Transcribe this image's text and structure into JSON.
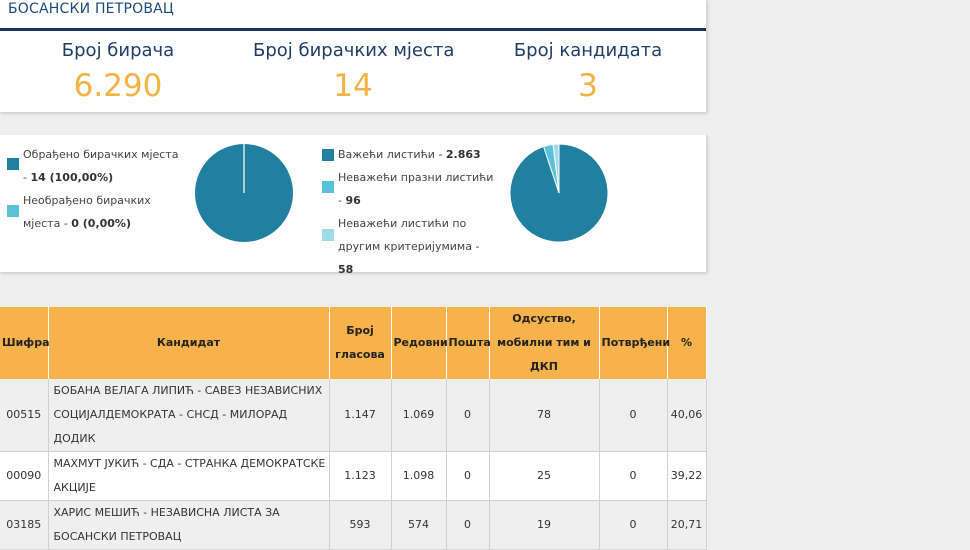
{
  "header": {
    "municipality": "БОСАНСКИ ПЕТРОВАЦ"
  },
  "stats": [
    {
      "label": "Број бирача",
      "value": "6.290"
    },
    {
      "label": "Број бирачких мјеста",
      "value": "14"
    },
    {
      "label": "Број кандидата",
      "value": "3"
    }
  ],
  "pies": {
    "stations": {
      "items": [
        {
          "text": "Обрађено бирачких мјеста - ",
          "value": "14 (100,00%)",
          "share": 1.0,
          "color": "#21809f"
        },
        {
          "text": "Необрађено бирачких мјеста - ",
          "value": "0 (0,00%)",
          "share": 0.0,
          "color": "#5bc1db"
        }
      ]
    },
    "ballots": {
      "items": [
        {
          "text": "Важећи листићи - ",
          "value": "2.863",
          "share": 2863,
          "color": "#21809f"
        },
        {
          "text": "Неважећи празни листићи - ",
          "value": "96",
          "share": 96,
          "color": "#5bc1db"
        },
        {
          "text": "Неважећи листићи по другим критеријумима - ",
          "value": "58",
          "share": 58,
          "color": "#9fdbe9"
        }
      ]
    }
  },
  "table": {
    "headers": [
      "Шифра",
      "Кандидат",
      "Број гласова",
      "Редовни",
      "Пошта",
      "Одсуство, мобилни тим и ДКП",
      "Потврђени",
      "%"
    ],
    "rows": [
      [
        "00515",
        "БОБАНА ВЕЛАГА ЛИПИЋ - САВЕЗ НЕЗАВИСНИХ СОЦИЈАЛДЕМОКРАТА - СНСД - МИЛОРАД ДОДИК",
        "1.147",
        "1.069",
        "0",
        "78",
        "0",
        "40,06"
      ],
      [
        "00090",
        "МАХМУТ ЈУКИЋ - СДА - СТРАНКА ДЕМОКРАТСКЕ АКЦИЈЕ",
        "1.123",
        "1.098",
        "0",
        "25",
        "0",
        "39,22"
      ],
      [
        "03185",
        "ХАРИС МЕШИЋ - НЕЗАВИСНА ЛИСТА ЗА БОСАНСКИ ПЕТРОВАЦ",
        "593",
        "574",
        "0",
        "19",
        "0",
        "20,71"
      ]
    ]
  }
}
